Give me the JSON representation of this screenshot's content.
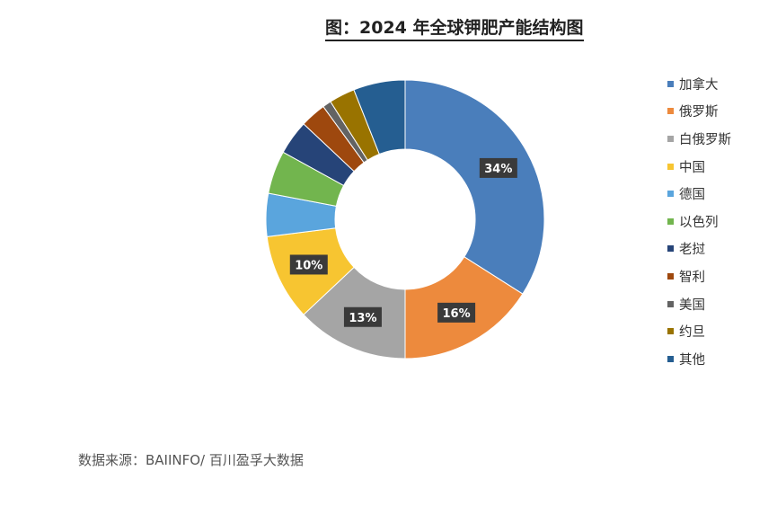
{
  "title": "图：2024 年全球钾肥产能结构图",
  "source": "数据来源：BAIINFO/ 百川盈孚大数据",
  "chart_data": {
    "type": "pie",
    "variant": "donut",
    "title": "图：2024 年全球钾肥产能结构图",
    "categories": [
      "加拿大",
      "俄罗斯",
      "白俄罗斯",
      "中国",
      "德国",
      "以色列",
      "老挝",
      "智利",
      "美国",
      "约旦",
      "其他"
    ],
    "values": [
      34,
      16,
      13,
      10,
      5,
      5,
      4,
      3,
      1,
      3,
      6
    ],
    "data_labels": [
      "34%",
      "16%",
      "13%",
      "10%",
      "",
      "",
      "",
      "",
      "",
      "",
      ""
    ],
    "colors": [
      "#4a7ebb",
      "#ed8a3d",
      "#a5a5a5",
      "#f7c531",
      "#5aa5dd",
      "#72b54e",
      "#264478",
      "#9e480e",
      "#636363",
      "#997300",
      "#255e91"
    ],
    "legend_position": "right"
  }
}
